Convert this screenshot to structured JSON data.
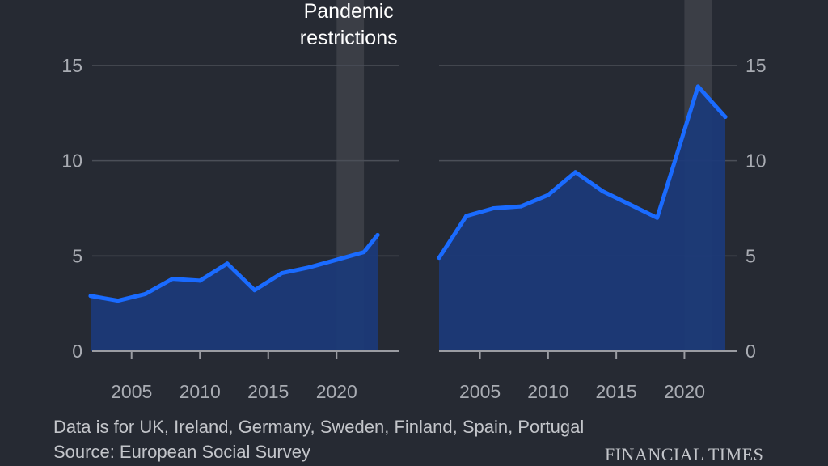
{
  "annotation": {
    "line1": "Pandemic",
    "line2": "restrictions"
  },
  "footnote": "Data is for UK, Ireland, Germany, Sweden, Finland, Spain, Portugal",
  "source": "Source: European Social Survey",
  "brand": "FINANCIAL TIMES",
  "colors": {
    "background": "#262a33",
    "line": "#1a6bff",
    "area": "#1b3a7a",
    "highlight": "#3b3e46",
    "grid": "#4b4f58"
  },
  "chart_data": [
    {
      "type": "area",
      "y_axis_side": "left",
      "x": [
        2002,
        2004,
        2006,
        2008,
        2010,
        2012,
        2014,
        2016,
        2018,
        2020,
        2022,
        2023
      ],
      "values": [
        2.9,
        2.65,
        3.0,
        3.8,
        3.7,
        4.6,
        3.2,
        4.1,
        4.4,
        4.8,
        5.2,
        6.1
      ],
      "xlim": [
        2002,
        2023
      ],
      "ylim": [
        0,
        15
      ],
      "xticks": [
        "2005",
        "2010",
        "2015",
        "2020"
      ],
      "yticks": [
        "0",
        "5",
        "10",
        "15"
      ],
      "highlight_range": [
        2020,
        2022
      ],
      "highlight_label": "Pandemic restrictions"
    },
    {
      "type": "area",
      "y_axis_side": "right",
      "x": [
        2002,
        2004,
        2006,
        2008,
        2010,
        2012,
        2014,
        2016,
        2018,
        2021,
        2023
      ],
      "values": [
        4.9,
        7.1,
        7.5,
        7.6,
        8.2,
        9.4,
        8.4,
        7.7,
        7.0,
        13.9,
        12.3
      ],
      "xlim": [
        2002,
        2023
      ],
      "ylim": [
        0,
        15
      ],
      "xticks": [
        "2005",
        "2010",
        "2015",
        "2020"
      ],
      "yticks": [
        "0",
        "5",
        "10",
        "15"
      ],
      "highlight_range": [
        2020,
        2022
      ]
    }
  ]
}
